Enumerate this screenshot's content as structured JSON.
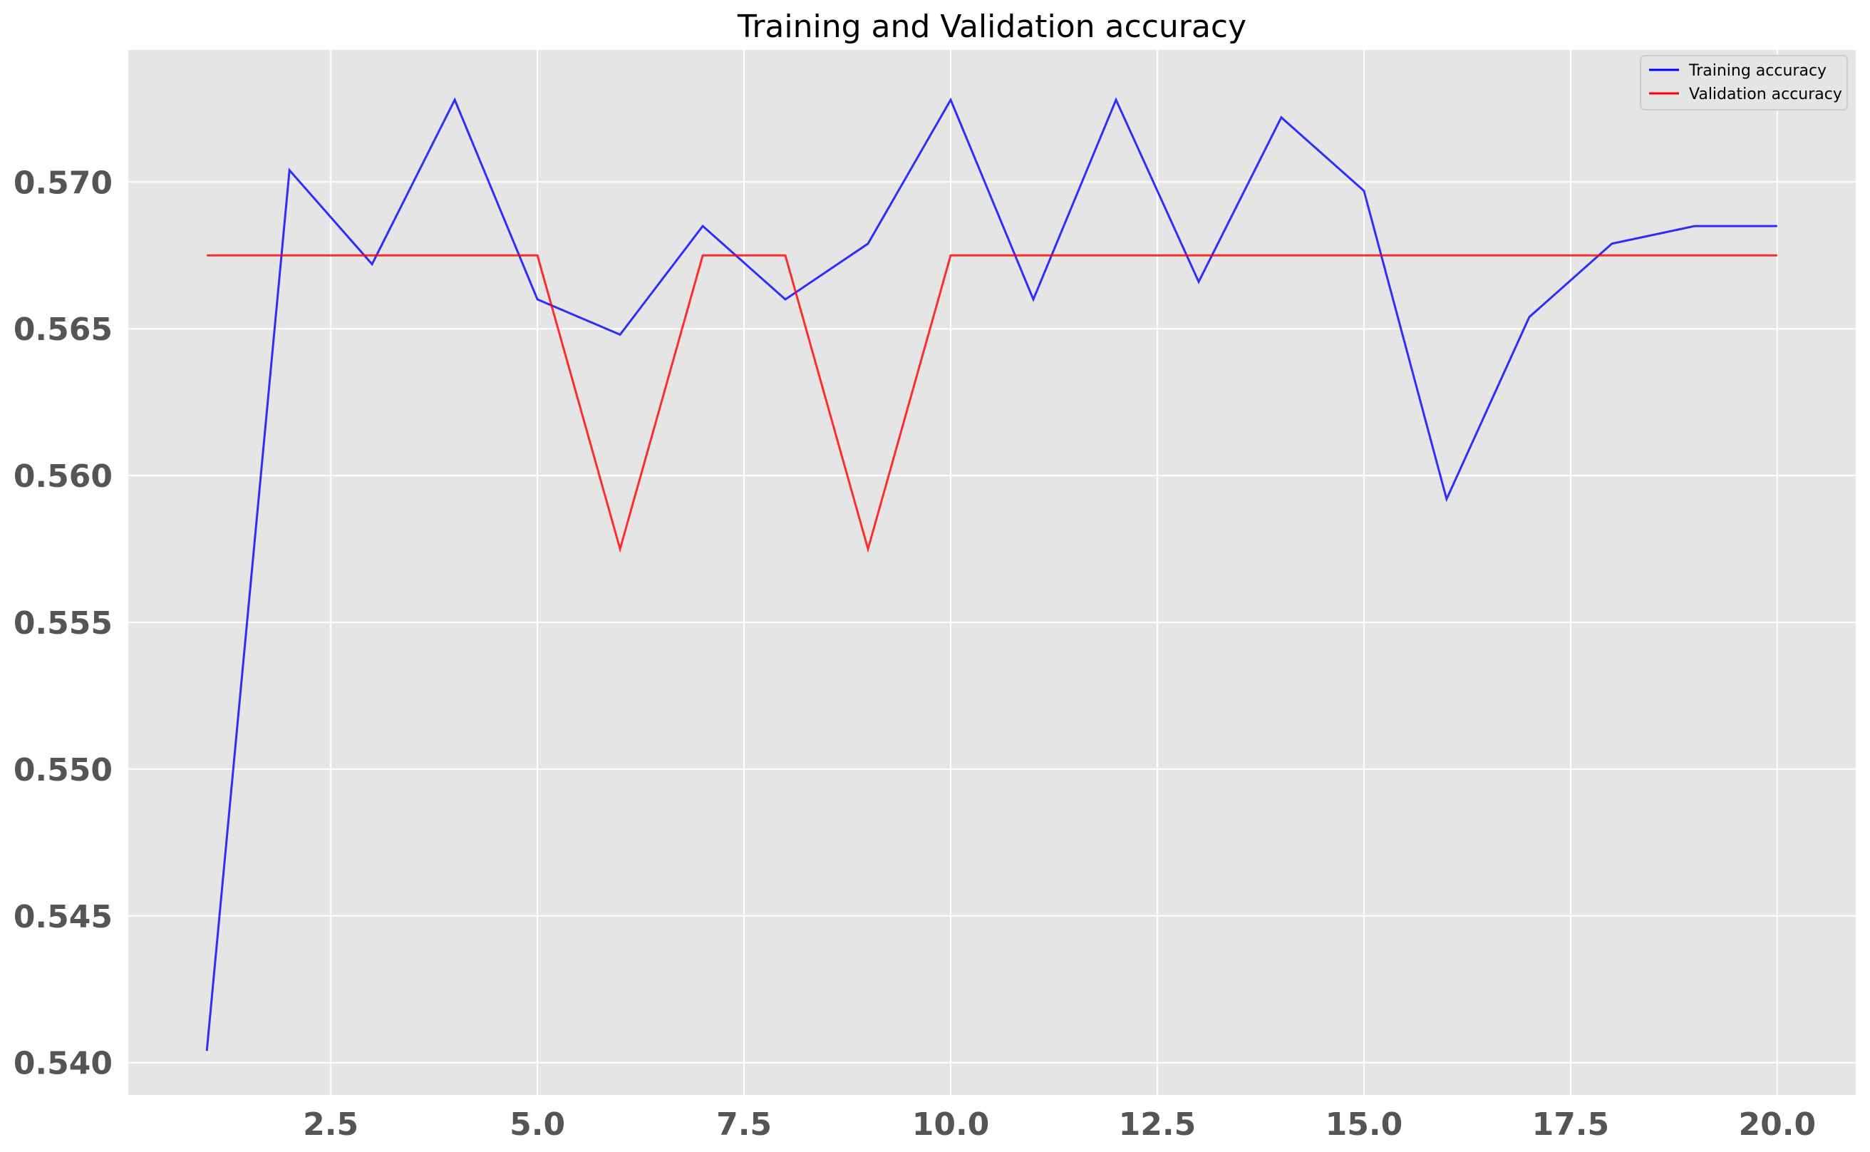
{
  "chart_data": {
    "type": "line",
    "title": "Training and Validation accuracy",
    "xlabel": "",
    "ylabel": "",
    "x": [
      1,
      2,
      3,
      4,
      5,
      6,
      7,
      8,
      9,
      10,
      11,
      12,
      13,
      14,
      15,
      16,
      17,
      18,
      19,
      20
    ],
    "series": [
      {
        "name": "Training accuracy",
        "color": "#0000ff",
        "values": [
          0.5404,
          0.5704,
          0.5672,
          0.5728,
          0.566,
          0.5648,
          0.5685,
          0.566,
          0.5679,
          0.5728,
          0.566,
          0.5728,
          0.5666,
          0.5722,
          0.5697,
          0.5592,
          0.5654,
          0.5679,
          0.5685,
          0.5685
        ]
      },
      {
        "name": "Validation accuracy",
        "color": "#ff0000",
        "values": [
          0.5675,
          0.5675,
          0.5675,
          0.5675,
          0.5675,
          0.5575,
          0.5675,
          0.5675,
          0.5575,
          0.5675,
          0.5675,
          0.5675,
          0.5675,
          0.5675,
          0.5675,
          0.5675,
          0.5675,
          0.5675,
          0.5675,
          0.5675
        ]
      }
    ],
    "xlim": [
      0.05,
      20.95
    ],
    "ylim": [
      0.5389,
      0.5745
    ],
    "xticks": [
      2.5,
      5.0,
      7.5,
      10.0,
      12.5,
      15.0,
      17.5,
      20.0
    ],
    "xtick_labels": [
      "2.5",
      "5.0",
      "7.5",
      "10.0",
      "12.5",
      "15.0",
      "17.5",
      "20.0"
    ],
    "yticks": [
      0.54,
      0.545,
      0.55,
      0.555,
      0.56,
      0.565,
      0.57
    ],
    "ytick_labels": [
      "0.540",
      "0.545",
      "0.550",
      "0.555",
      "0.560",
      "0.565",
      "0.570"
    ],
    "grid": true,
    "legend_position": "top-right",
    "colors": {
      "plot_background": "#e5e5e5",
      "grid": "#ffffff",
      "tick_text": "#555555"
    }
  }
}
